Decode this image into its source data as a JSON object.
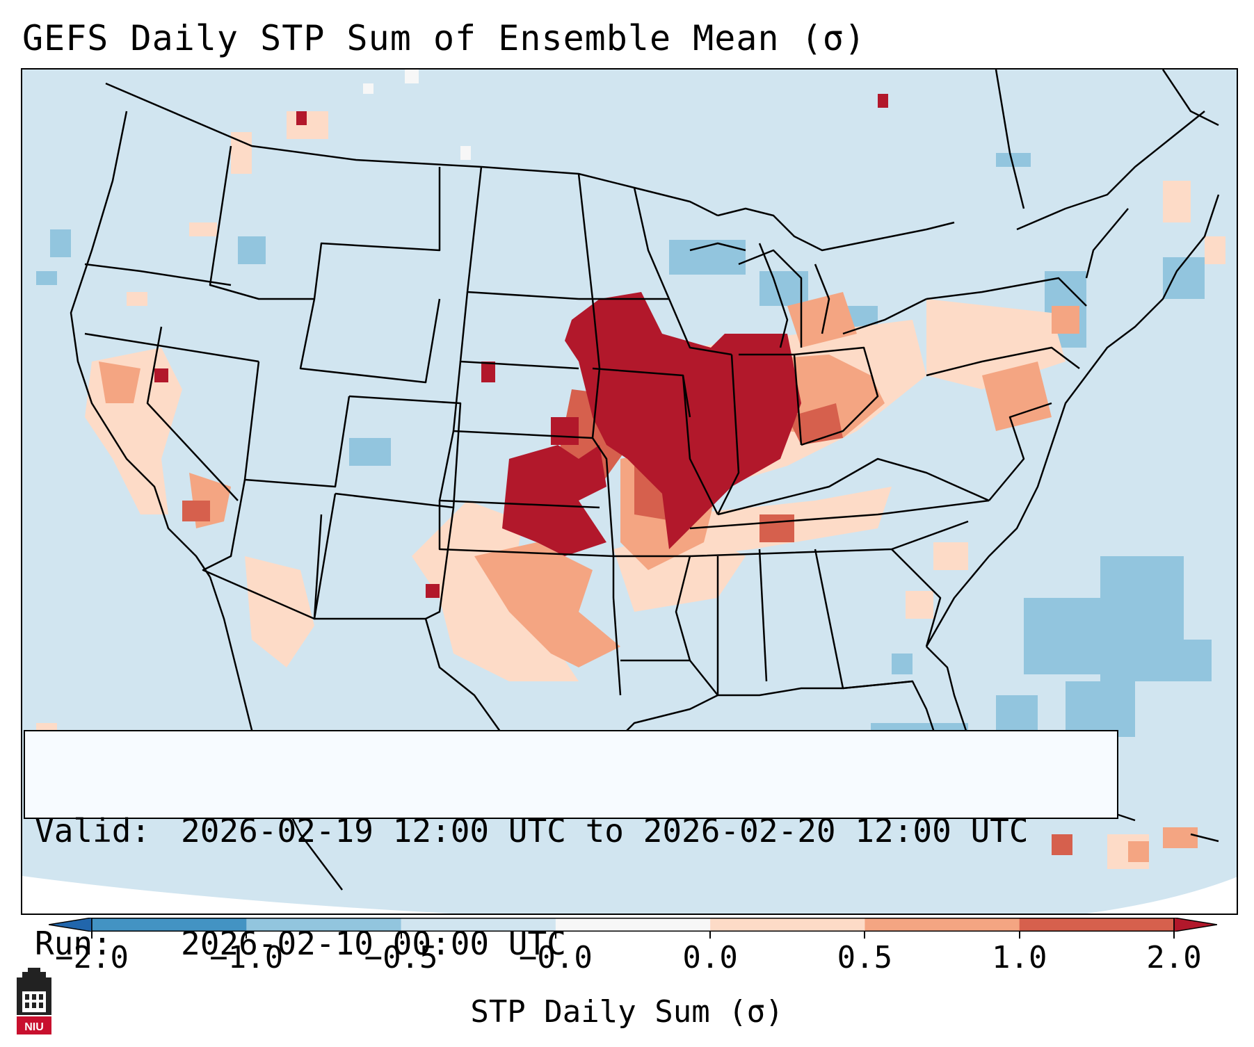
{
  "title": "GEFS Daily STP Sum of Ensemble Mean (σ)",
  "info": {
    "valid_label": "Valid:",
    "valid_value": "2026-02-19 12:00 UTC to 2026-02-20 12:00 UTC",
    "run_label": "Run:",
    "run_value": "2026-02-10 00:00 UTC"
  },
  "colorbar": {
    "label": "STP Daily Sum (σ)",
    "ticks": [
      "−2.0",
      "−1.0",
      "−0.5",
      "−0.0",
      "0.0",
      "0.5",
      "1.0",
      "2.0"
    ],
    "colors": [
      "#4393c3",
      "#92c5de",
      "#d1e5f0",
      "#f7f7f7",
      "#fddbc7",
      "#f4a582",
      "#d6604d",
      "#b2182b"
    ],
    "extend": "both"
  },
  "map": {
    "region": "CONUS",
    "background_color": "#d1e5f0",
    "highlight_regions": [
      {
        "area": "Iowa / Missouri / Illinois",
        "level": "2.0"
      },
      {
        "area": "Oklahoma / Kansas",
        "level": "1.0–2.0"
      },
      {
        "area": "Arkansas / Texas",
        "level": "0.5–1.0"
      },
      {
        "area": "Ohio Valley / Appalachians",
        "level": "0.0–1.0"
      }
    ]
  },
  "logo": {
    "text": "NIU"
  }
}
